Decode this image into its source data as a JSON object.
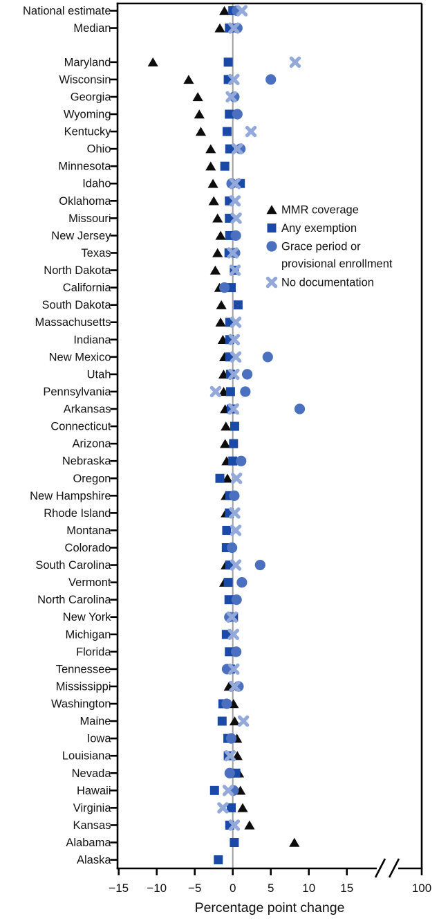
{
  "chart_data": {
    "type": "scatter",
    "title": "",
    "xlabel": "Percentage point change",
    "x_tick_labels": [
      "−15",
      "−10",
      "−5",
      "0",
      "5",
      "10",
      "15",
      "100"
    ],
    "x_tick_values": [
      -15,
      -10,
      -5,
      0,
      5,
      10,
      15
    ],
    "x_break_label": "100",
    "xlim": [
      -15,
      15
    ],
    "zero_line": true,
    "legend_position": "middle-right",
    "series_legend": [
      {
        "name": "MMR coverage",
        "marker": "triangle",
        "color": "#0d0d0d"
      },
      {
        "name": "Any exemption",
        "marker": "square",
        "color": "#1b49a8"
      },
      {
        "name": "Grace period or provisional enrollment",
        "marker": "circle",
        "color": "#4a70bf"
      },
      {
        "name": "No documentation",
        "marker": "x",
        "color": "#93a9da"
      }
    ],
    "rows": [
      {
        "label": "National estimate",
        "mmr": -1.1,
        "exemption": 0.0,
        "grace": 0.55,
        "nodoc": 1.2
      },
      {
        "label": "Median",
        "mmr": -1.7,
        "exemption": -0.45,
        "grace": 0.6,
        "nodoc": 0.15
      },
      {
        "label": "Maryland",
        "mmr": -10.5,
        "exemption": -0.6,
        "grace": null,
        "nodoc": 8.2
      },
      {
        "label": "Wisconsin",
        "mmr": -5.8,
        "exemption": -0.6,
        "grace": 5.0,
        "nodoc": 0.15
      },
      {
        "label": "Georgia",
        "mmr": -4.6,
        "exemption": null,
        "grace": 0.2,
        "nodoc": -0.2
      },
      {
        "label": "Wyoming",
        "mmr": -4.4,
        "exemption": -0.45,
        "grace": 0.6,
        "nodoc": null
      },
      {
        "label": "Kentucky",
        "mmr": -4.2,
        "exemption": -0.75,
        "grace": null,
        "nodoc": 2.4
      },
      {
        "label": "Ohio",
        "mmr": -2.9,
        "exemption": -0.4,
        "grace": 1.0,
        "nodoc": 0.6
      },
      {
        "label": "Minnesota",
        "mmr": -2.9,
        "exemption": -1.05,
        "grace": null,
        "nodoc": null
      },
      {
        "label": "Idaho",
        "mmr": -2.6,
        "exemption": 1.0,
        "grace": -0.15,
        "nodoc": 0.3
      },
      {
        "label": "Oklahoma",
        "mmr": -2.5,
        "exemption": -0.45,
        "grace": null,
        "nodoc": 0.3
      },
      {
        "label": "Missouri",
        "mmr": -2.0,
        "exemption": -0.45,
        "grace": null,
        "nodoc": 0.45
      },
      {
        "label": "New Jersey",
        "mmr": -1.6,
        "exemption": -0.4,
        "grace": 0.4,
        "nodoc": null
      },
      {
        "label": "Texas",
        "mmr": -2.0,
        "exemption": -0.5,
        "grace": 0.3,
        "nodoc": 0.0
      },
      {
        "label": "North Dakota",
        "mmr": -2.3,
        "exemption": 0.2,
        "grace": null,
        "nodoc": 0.3
      },
      {
        "label": "California",
        "mmr": -1.75,
        "exemption": -0.2,
        "grace": -1.1,
        "nodoc": null
      },
      {
        "label": "South Dakota",
        "mmr": -1.5,
        "exemption": 0.7,
        "grace": null,
        "nodoc": null
      },
      {
        "label": "Massachusetts",
        "mmr": -1.6,
        "exemption": -0.4,
        "grace": null,
        "nodoc": 0.4
      },
      {
        "label": "Indiana",
        "mmr": -1.3,
        "exemption": -0.4,
        "grace": null,
        "nodoc": 0.2
      },
      {
        "label": "New Mexico",
        "mmr": -1.1,
        "exemption": -0.4,
        "grace": 4.6,
        "nodoc": 0.4
      },
      {
        "label": "Utah",
        "mmr": -1.2,
        "exemption": -0.3,
        "grace": 1.9,
        "nodoc": 0.15
      },
      {
        "label": "Pennsylvania",
        "mmr": -1.2,
        "exemption": -0.3,
        "grace": 1.65,
        "nodoc": -2.25
      },
      {
        "label": "Arkansas",
        "mmr": -1.0,
        "exemption": -0.2,
        "grace": 8.8,
        "nodoc": 0.1
      },
      {
        "label": "Connecticut",
        "mmr": -0.9,
        "exemption": 0.25,
        "grace": null,
        "nodoc": null
      },
      {
        "label": "Arizona",
        "mmr": -1.0,
        "exemption": 0.1,
        "grace": null,
        "nodoc": null
      },
      {
        "label": "Nebraska",
        "mmr": -0.8,
        "exemption": 0.0,
        "grace": 1.1,
        "nodoc": null
      },
      {
        "label": "Oregon",
        "mmr": -0.7,
        "exemption": -1.7,
        "grace": null,
        "nodoc": 0.5
      },
      {
        "label": "New Hampshire",
        "mmr": -0.9,
        "exemption": -0.4,
        "grace": 0.2,
        "nodoc": null
      },
      {
        "label": "Rhode Island",
        "mmr": -0.9,
        "exemption": -0.45,
        "grace": null,
        "nodoc": 0.25
      },
      {
        "label": "Montana",
        "mmr": null,
        "exemption": -0.8,
        "grace": null,
        "nodoc": 0.4
      },
      {
        "label": "Colorado",
        "mmr": null,
        "exemption": -0.85,
        "grace": -0.1,
        "nodoc": null
      },
      {
        "label": "South Carolina",
        "mmr": -0.9,
        "exemption": -0.4,
        "grace": 3.6,
        "nodoc": 0.4
      },
      {
        "label": "Vermont",
        "mmr": -1.1,
        "exemption": -0.6,
        "grace": 1.2,
        "nodoc": null
      },
      {
        "label": "North Carolina",
        "mmr": null,
        "exemption": -0.5,
        "grace": 0.5,
        "nodoc": null
      },
      {
        "label": "New York",
        "mmr": null,
        "exemption": 0.1,
        "grace": -0.45,
        "nodoc": -0.1
      },
      {
        "label": "Michigan",
        "mmr": null,
        "exemption": -0.85,
        "grace": null,
        "nodoc": 0.1
      },
      {
        "label": "Florida",
        "mmr": null,
        "exemption": -0.45,
        "grace": 0.45,
        "nodoc": null
      },
      {
        "label": "Tennessee",
        "mmr": null,
        "exemption": -0.3,
        "grace": -0.75,
        "nodoc": 0.15
      },
      {
        "label": "Mississippi",
        "mmr": -0.5,
        "exemption": null,
        "grace": 0.75,
        "nodoc": 0.25
      },
      {
        "label": "Washington",
        "mmr": 0.1,
        "exemption": -1.3,
        "grace": -0.8,
        "nodoc": null
      },
      {
        "label": "Maine",
        "mmr": 0.25,
        "exemption": -1.4,
        "grace": null,
        "nodoc": 1.4
      },
      {
        "label": "Iowa",
        "mmr": 0.55,
        "exemption": -0.65,
        "grace": -0.2,
        "nodoc": null
      },
      {
        "label": "Louisiana",
        "mmr": 0.6,
        "exemption": -0.6,
        "grace": null,
        "nodoc": -0.35
      },
      {
        "label": "Nevada",
        "mmr": 0.8,
        "exemption": 0.4,
        "grace": -0.4,
        "nodoc": null
      },
      {
        "label": "Hawaii",
        "mmr": 1.0,
        "exemption": -2.4,
        "grace": 0.1,
        "nodoc": -0.6
      },
      {
        "label": "Virginia",
        "mmr": 1.3,
        "exemption": -0.2,
        "grace": null,
        "nodoc": -1.3
      },
      {
        "label": "Kansas",
        "mmr": 2.2,
        "exemption": -0.4,
        "grace": null,
        "nodoc": 0.2
      },
      {
        "label": "Alabama",
        "mmr": 8.1,
        "exemption": 0.2,
        "grace": null,
        "nodoc": null
      },
      {
        "label": "Alaska",
        "mmr": null,
        "exemption": -1.9,
        "grace": null,
        "nodoc": null
      }
    ]
  },
  "legend": {
    "items": [
      {
        "label": "MMR coverage"
      },
      {
        "label": "Any exemption"
      },
      {
        "label": "Grace period or",
        "label2": "provisional enrollment"
      },
      {
        "label": "No documentation"
      }
    ]
  },
  "colors": {
    "mmr": "#0d0d0d",
    "exemption": "#1b49a8",
    "grace": "#4a70bf",
    "nodoc": "#93a9da",
    "zero_line": "#9e9e9e",
    "axis": "#000000"
  }
}
